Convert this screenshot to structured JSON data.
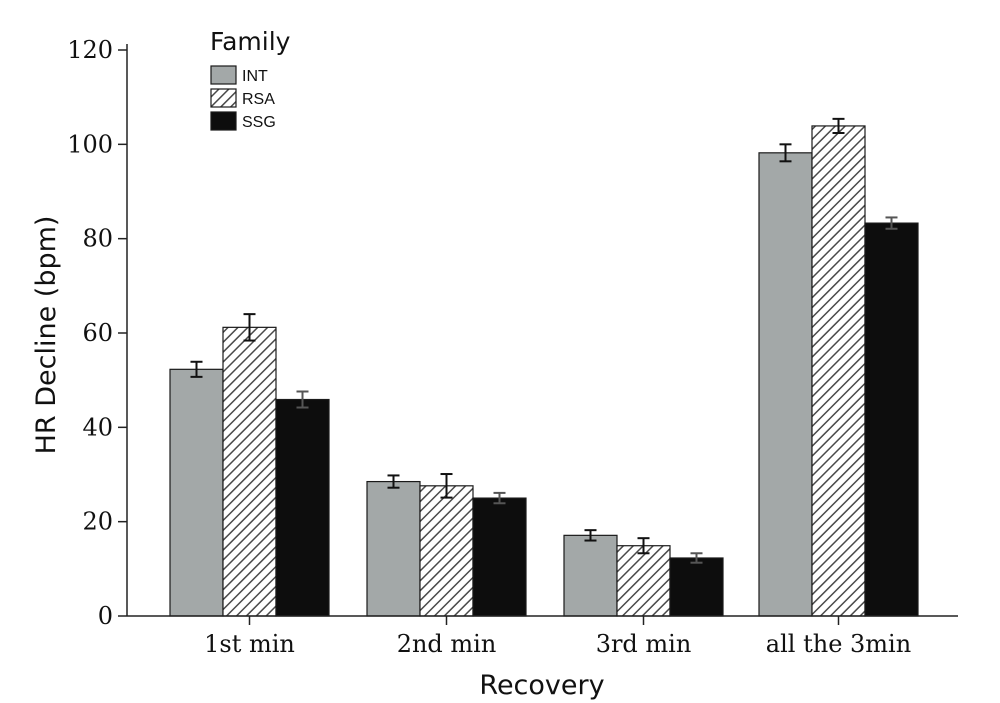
{
  "chart_data": {
    "type": "bar",
    "xlabel": "Recovery",
    "ylabel": "HR Decline (bpm)",
    "ylim": [
      0,
      120
    ],
    "yticks": [
      0,
      20,
      40,
      60,
      80,
      100,
      120
    ],
    "grid": false,
    "legend": {
      "title": "Family",
      "placement": "top-left"
    },
    "categories": [
      "1st min",
      "2nd min",
      "3rd min",
      "all the 3min"
    ],
    "series": [
      {
        "name": "INT",
        "pattern": "solid",
        "color": "#a3a8a8",
        "values": [
          52.3,
          28.5,
          17.1,
          98.2
        ],
        "error": [
          1.6,
          1.3,
          1.1,
          1.8
        ]
      },
      {
        "name": "RSA",
        "pattern": "hatch",
        "color": "#ffffff",
        "values": [
          61.2,
          27.6,
          14.9,
          103.9
        ],
        "error": [
          2.8,
          2.5,
          1.6,
          1.5
        ]
      },
      {
        "name": "SSG",
        "pattern": "solid",
        "color": "#0d0d0d",
        "values": [
          45.9,
          25.0,
          12.3,
          83.3
        ],
        "error": [
          1.7,
          1.1,
          1.0,
          1.2
        ]
      }
    ]
  }
}
